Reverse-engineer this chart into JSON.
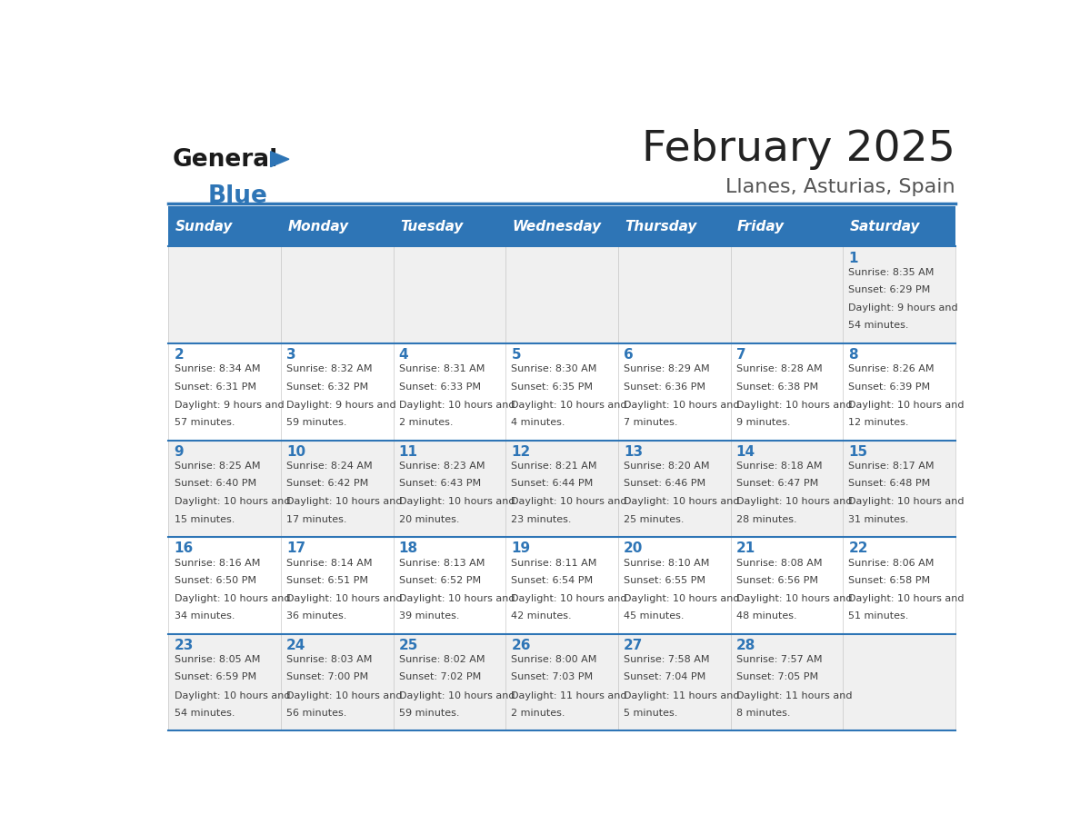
{
  "title": "February 2025",
  "subtitle": "Llanes, Asturias, Spain",
  "days_of_week": [
    "Sunday",
    "Monday",
    "Tuesday",
    "Wednesday",
    "Thursday",
    "Friday",
    "Saturday"
  ],
  "header_bg_color": "#2E75B6",
  "header_text_color": "#FFFFFF",
  "row_bg_even": "#F0F0F0",
  "row_bg_odd": "#FFFFFF",
  "title_color": "#222222",
  "subtitle_color": "#555555",
  "day_number_color": "#2E75B6",
  "cell_text_color": "#404040",
  "divider_color": "#2E75B6",
  "logo_color_general": "#1a1a1a",
  "logo_color_blue": "#2E75B6",
  "logo_triangle_color": "#2E75B6",
  "calendar_data": [
    [
      {
        "day": null,
        "sunrise": null,
        "sunset": null,
        "daylight": null
      },
      {
        "day": null,
        "sunrise": null,
        "sunset": null,
        "daylight": null
      },
      {
        "day": null,
        "sunrise": null,
        "sunset": null,
        "daylight": null
      },
      {
        "day": null,
        "sunrise": null,
        "sunset": null,
        "daylight": null
      },
      {
        "day": null,
        "sunrise": null,
        "sunset": null,
        "daylight": null
      },
      {
        "day": null,
        "sunrise": null,
        "sunset": null,
        "daylight": null
      },
      {
        "day": 1,
        "sunrise": "8:35 AM",
        "sunset": "6:29 PM",
        "daylight": "9 hours and 54 minutes."
      }
    ],
    [
      {
        "day": 2,
        "sunrise": "8:34 AM",
        "sunset": "6:31 PM",
        "daylight": "9 hours and 57 minutes."
      },
      {
        "day": 3,
        "sunrise": "8:32 AM",
        "sunset": "6:32 PM",
        "daylight": "9 hours and 59 minutes."
      },
      {
        "day": 4,
        "sunrise": "8:31 AM",
        "sunset": "6:33 PM",
        "daylight": "10 hours and 2 minutes."
      },
      {
        "day": 5,
        "sunrise": "8:30 AM",
        "sunset": "6:35 PM",
        "daylight": "10 hours and 4 minutes."
      },
      {
        "day": 6,
        "sunrise": "8:29 AM",
        "sunset": "6:36 PM",
        "daylight": "10 hours and 7 minutes."
      },
      {
        "day": 7,
        "sunrise": "8:28 AM",
        "sunset": "6:38 PM",
        "daylight": "10 hours and 9 minutes."
      },
      {
        "day": 8,
        "sunrise": "8:26 AM",
        "sunset": "6:39 PM",
        "daylight": "10 hours and 12 minutes."
      }
    ],
    [
      {
        "day": 9,
        "sunrise": "8:25 AM",
        "sunset": "6:40 PM",
        "daylight": "10 hours and 15 minutes."
      },
      {
        "day": 10,
        "sunrise": "8:24 AM",
        "sunset": "6:42 PM",
        "daylight": "10 hours and 17 minutes."
      },
      {
        "day": 11,
        "sunrise": "8:23 AM",
        "sunset": "6:43 PM",
        "daylight": "10 hours and 20 minutes."
      },
      {
        "day": 12,
        "sunrise": "8:21 AM",
        "sunset": "6:44 PM",
        "daylight": "10 hours and 23 minutes."
      },
      {
        "day": 13,
        "sunrise": "8:20 AM",
        "sunset": "6:46 PM",
        "daylight": "10 hours and 25 minutes."
      },
      {
        "day": 14,
        "sunrise": "8:18 AM",
        "sunset": "6:47 PM",
        "daylight": "10 hours and 28 minutes."
      },
      {
        "day": 15,
        "sunrise": "8:17 AM",
        "sunset": "6:48 PM",
        "daylight": "10 hours and 31 minutes."
      }
    ],
    [
      {
        "day": 16,
        "sunrise": "8:16 AM",
        "sunset": "6:50 PM",
        "daylight": "10 hours and 34 minutes."
      },
      {
        "day": 17,
        "sunrise": "8:14 AM",
        "sunset": "6:51 PM",
        "daylight": "10 hours and 36 minutes."
      },
      {
        "day": 18,
        "sunrise": "8:13 AM",
        "sunset": "6:52 PM",
        "daylight": "10 hours and 39 minutes."
      },
      {
        "day": 19,
        "sunrise": "8:11 AM",
        "sunset": "6:54 PM",
        "daylight": "10 hours and 42 minutes."
      },
      {
        "day": 20,
        "sunrise": "8:10 AM",
        "sunset": "6:55 PM",
        "daylight": "10 hours and 45 minutes."
      },
      {
        "day": 21,
        "sunrise": "8:08 AM",
        "sunset": "6:56 PM",
        "daylight": "10 hours and 48 minutes."
      },
      {
        "day": 22,
        "sunrise": "8:06 AM",
        "sunset": "6:58 PM",
        "daylight": "10 hours and 51 minutes."
      }
    ],
    [
      {
        "day": 23,
        "sunrise": "8:05 AM",
        "sunset": "6:59 PM",
        "daylight": "10 hours and 54 minutes."
      },
      {
        "day": 24,
        "sunrise": "8:03 AM",
        "sunset": "7:00 PM",
        "daylight": "10 hours and 56 minutes."
      },
      {
        "day": 25,
        "sunrise": "8:02 AM",
        "sunset": "7:02 PM",
        "daylight": "10 hours and 59 minutes."
      },
      {
        "day": 26,
        "sunrise": "8:00 AM",
        "sunset": "7:03 PM",
        "daylight": "11 hours and 2 minutes."
      },
      {
        "day": 27,
        "sunrise": "7:58 AM",
        "sunset": "7:04 PM",
        "daylight": "11 hours and 5 minutes."
      },
      {
        "day": 28,
        "sunrise": "7:57 AM",
        "sunset": "7:05 PM",
        "daylight": "11 hours and 8 minutes."
      },
      {
        "day": null,
        "sunrise": null,
        "sunset": null,
        "daylight": null
      }
    ]
  ]
}
